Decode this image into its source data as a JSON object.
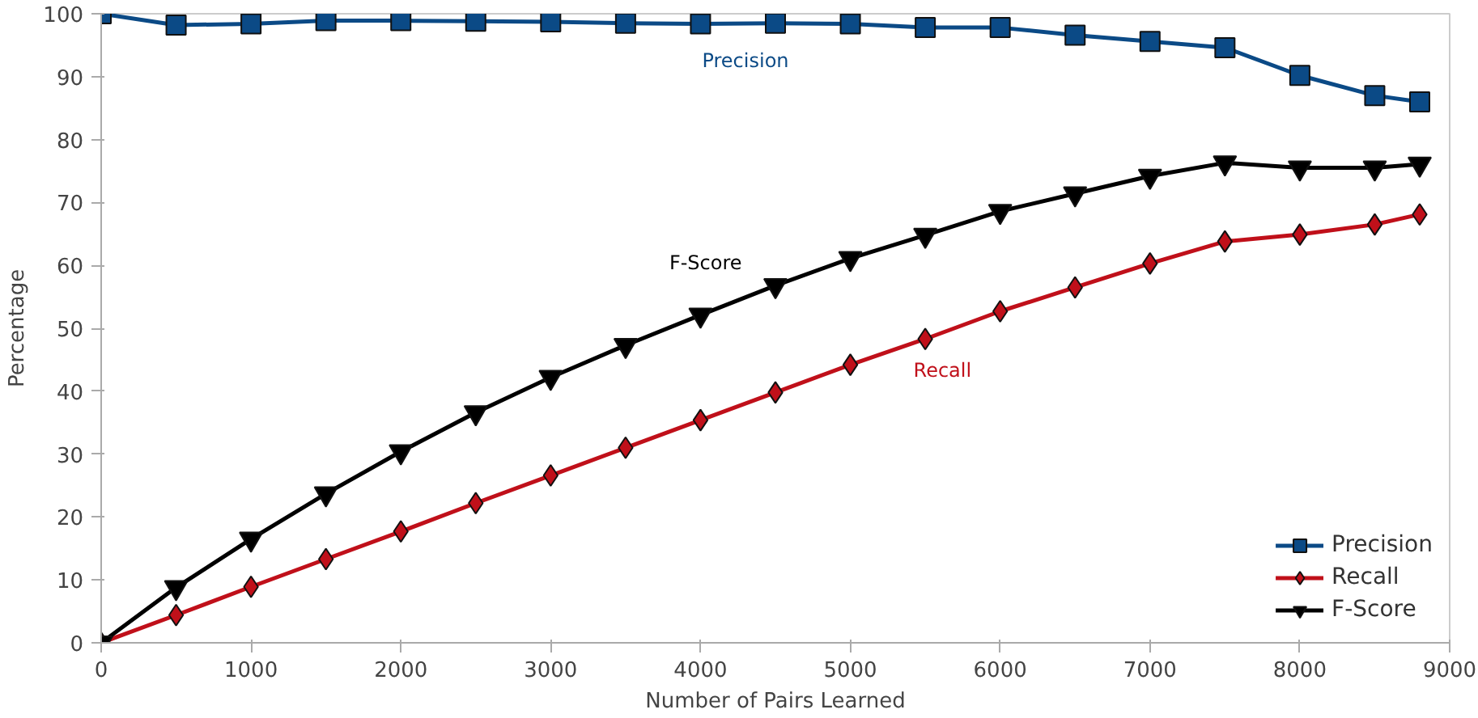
{
  "chart_data": {
    "type": "line",
    "xlabel": "Number of Pairs Learned",
    "ylabel": "Percentage",
    "x": [
      0,
      500,
      1000,
      1500,
      2000,
      2500,
      3000,
      3500,
      4000,
      4500,
      5000,
      5500,
      6000,
      6500,
      7000,
      7500,
      8000,
      8500,
      8800
    ],
    "series": [
      {
        "name": "Precision",
        "color": "#0b4a86",
        "marker": "square",
        "values": [
          100,
          98.2,
          98.4,
          98.9,
          98.9,
          98.8,
          98.7,
          98.5,
          98.4,
          98.5,
          98.4,
          97.8,
          97.8,
          96.6,
          95.6,
          94.6,
          90.2,
          87,
          86
        ]
      },
      {
        "name": "Recall",
        "color": "#c0101a",
        "marker": "diamond",
        "values": [
          0,
          4.4,
          8.9,
          13.3,
          17.7,
          22.2,
          26.6,
          31,
          35.4,
          39.8,
          44.2,
          48.3,
          52.7,
          56.5,
          60.3,
          63.8,
          64.9,
          66.5,
          68.1
        ]
      },
      {
        "name": "F-Score",
        "color": "#000000",
        "marker": "triangle",
        "values": [
          0,
          8.8,
          16.5,
          23.7,
          30.4,
          36.6,
          42.2,
          47.3,
          52.1,
          56.8,
          61.1,
          64.8,
          68.6,
          71.4,
          74.2,
          76.3,
          75.5,
          75.5,
          76.1
        ]
      }
    ],
    "annotations": [
      "Precision",
      "Recall",
      "F-Score"
    ],
    "xlim": [
      0,
      9000
    ],
    "ylim": [
      0,
      100
    ],
    "xticks": [
      0,
      1000,
      2000,
      3000,
      4000,
      5000,
      6000,
      7000,
      8000,
      9000
    ],
    "yticks": [
      0,
      10,
      20,
      30,
      40,
      50,
      60,
      70,
      80,
      90,
      100
    ],
    "grid": false,
    "legend": "bottom right",
    "line_style": "solid"
  }
}
